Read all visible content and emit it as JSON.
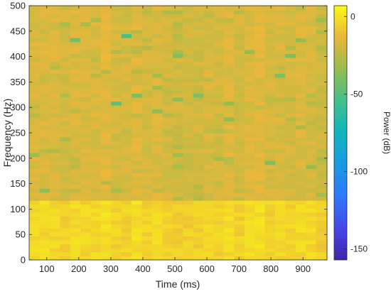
{
  "chart_data": {
    "type": "heatmap",
    "xlabel": "Time (ms)",
    "ylabel": "Frequency (Hz)",
    "colorbar_label": "Power (dB)",
    "xlim": [
      45,
      975
    ],
    "ylim": [
      0,
      500
    ],
    "x_ticks": [
      100,
      200,
      300,
      400,
      500,
      600,
      700,
      800,
      900
    ],
    "y_ticks": [
      0,
      50,
      100,
      150,
      200,
      250,
      300,
      350,
      400,
      450,
      500
    ],
    "clim": [
      -157,
      7
    ],
    "colorbar_ticks": [
      0,
      -50,
      -100,
      -150
    ],
    "time_bin_ms": 32,
    "freq_bin_hz": 7.8,
    "colormap": "parula",
    "colors": {
      "low_band": "#f6e43c",
      "high_band": "#f4c04a",
      "highlight": "#5cc26a"
    },
    "bands": [
      {
        "from_hz": 0,
        "to_hz": 115,
        "level_db": -4
      },
      {
        "from_hz": 115,
        "to_hz": 500,
        "level_db": -18
      }
    ],
    "highlights": [
      {
        "t": 193,
        "f": 430,
        "db": -42
      },
      {
        "t": 350,
        "f": 438,
        "db": -52
      },
      {
        "t": 318,
        "f": 308,
        "db": -47
      },
      {
        "t": 375,
        "f": 320,
        "db": -40
      },
      {
        "t": 522,
        "f": 400,
        "db": -38
      },
      {
        "t": 566,
        "f": 326,
        "db": -40
      },
      {
        "t": 524,
        "f": 313,
        "db": -36
      },
      {
        "t": 453,
        "f": 296,
        "db": -36
      },
      {
        "t": 664,
        "f": 311,
        "db": -34
      },
      {
        "t": 683,
        "f": 277,
        "db": -36
      },
      {
        "t": 743,
        "f": 406,
        "db": -33
      },
      {
        "t": 838,
        "f": 360,
        "db": -40
      },
      {
        "t": 867,
        "f": 403,
        "db": -38
      },
      {
        "t": 905,
        "f": 430,
        "db": -34
      },
      {
        "t": 805,
        "f": 194,
        "db": -40
      },
      {
        "t": 935,
        "f": 186,
        "db": -34
      },
      {
        "t": 103,
        "f": 138,
        "db": -36
      },
      {
        "t": 72,
        "f": 205,
        "db": -32
      },
      {
        "t": 430,
        "f": 343,
        "db": -30
      }
    ]
  }
}
